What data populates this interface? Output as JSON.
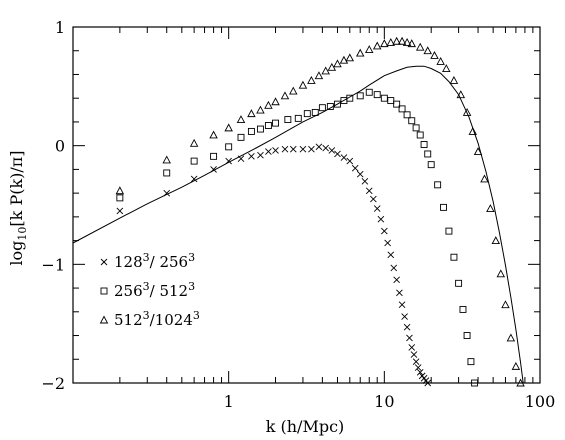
{
  "chart_data": {
    "type": "scatter",
    "title": "",
    "xlabel": "k (h/Mpc)",
    "ylabel_html": "log<sub>10</sub>[k P(k)/π]",
    "ylabel": {
      "pre": "log",
      "sub": "10",
      "post": "[k P(k)/π]"
    },
    "x_scale": "log",
    "xlim": [
      0.1,
      100
    ],
    "ylim": [
      -2,
      1
    ],
    "x_ticks": [
      {
        "value": 1,
        "label": "1"
      },
      {
        "value": 10,
        "label": "10"
      },
      {
        "value": 100,
        "label": "100"
      }
    ],
    "y_ticks": [
      {
        "value": -2,
        "label": "−2"
      },
      {
        "value": -1,
        "label": "−1"
      },
      {
        "value": 0,
        "label": "0"
      },
      {
        "value": 1,
        "label": "1"
      }
    ],
    "grid": false,
    "legend_position": "lower-left",
    "series": [
      {
        "name": "128³/ 256³",
        "label_parts": [
          "128",
          "3",
          "/ 256",
          "3"
        ],
        "marker": "x",
        "x": [
          0.2,
          0.4,
          0.6,
          0.8,
          1.0,
          1.2,
          1.4,
          1.6,
          1.8,
          2.0,
          2.3,
          2.6,
          3.0,
          3.4,
          3.8,
          4.2,
          4.6,
          5.0,
          5.5,
          6.0,
          6.5,
          7.0,
          7.5,
          8.0,
          8.5,
          9.0,
          9.5,
          10.0,
          10.5,
          11.0,
          11.5,
          12.0,
          12.5,
          13.0,
          13.5,
          14.0,
          14.5,
          15.0,
          15.5,
          16.0,
          16.5,
          17.0,
          17.5,
          18.0,
          18.5,
          19.0
        ],
        "y": [
          -0.55,
          -0.4,
          -0.28,
          -0.2,
          -0.13,
          -0.11,
          -0.09,
          -0.08,
          -0.05,
          -0.04,
          -0.03,
          -0.03,
          -0.03,
          -0.03,
          -0.01,
          -0.02,
          -0.04,
          -0.07,
          -0.1,
          -0.13,
          -0.19,
          -0.24,
          -0.3,
          -0.38,
          -0.45,
          -0.53,
          -0.62,
          -0.72,
          -0.82,
          -0.92,
          -1.03,
          -1.13,
          -1.24,
          -1.34,
          -1.44,
          -1.53,
          -1.62,
          -1.7,
          -1.76,
          -1.82,
          -1.87,
          -1.91,
          -1.94,
          -1.96,
          -1.98,
          -2.0
        ]
      },
      {
        "name": "256³/ 512³",
        "label_parts": [
          "256",
          "3",
          "/ 512",
          "3"
        ],
        "marker": "square",
        "x": [
          0.2,
          0.4,
          0.6,
          0.8,
          1.0,
          1.2,
          1.4,
          1.6,
          1.8,
          2.0,
          2.4,
          2.8,
          3.2,
          3.6,
          4.0,
          4.5,
          5.0,
          5.5,
          6.0,
          7.0,
          8.0,
          9.0,
          10.0,
          11.0,
          12.0,
          13.0,
          14.0,
          15.0,
          16.0,
          17.0,
          18.0,
          19.0,
          20.0,
          22.0,
          24.0,
          26.0,
          28.0,
          30.0,
          32.0,
          34.0,
          36.0,
          38.0
        ],
        "y": [
          -0.44,
          -0.23,
          -0.13,
          -0.09,
          -0.01,
          0.07,
          0.12,
          0.14,
          0.17,
          0.19,
          0.22,
          0.23,
          0.27,
          0.28,
          0.32,
          0.33,
          0.35,
          0.38,
          0.4,
          0.42,
          0.45,
          0.43,
          0.4,
          0.38,
          0.35,
          0.31,
          0.26,
          0.21,
          0.15,
          0.09,
          0.01,
          -0.07,
          -0.16,
          -0.33,
          -0.52,
          -0.72,
          -0.94,
          -1.16,
          -1.38,
          -1.6,
          -1.82,
          -2.0
        ]
      },
      {
        "name": "512³/1024³",
        "label_parts": [
          "512",
          "3",
          "/1024",
          "3"
        ],
        "marker": "triangle",
        "x": [
          0.2,
          0.4,
          0.6,
          0.8,
          1.0,
          1.2,
          1.4,
          1.6,
          1.8,
          2.0,
          2.3,
          2.6,
          3.0,
          3.4,
          3.8,
          4.2,
          4.6,
          5.0,
          5.5,
          6.0,
          7.0,
          8.0,
          9.0,
          10.0,
          11.0,
          12.0,
          13.0,
          14.0,
          15.0,
          17.0,
          19.0,
          21.0,
          23.0,
          25.0,
          28.0,
          31.0,
          34.0,
          37.0,
          40.0,
          44.0,
          48.0,
          52.0,
          56.0,
          60.0,
          65.0,
          70.0,
          75.0
        ],
        "y": [
          -0.38,
          -0.12,
          0.02,
          0.09,
          0.15,
          0.22,
          0.27,
          0.3,
          0.34,
          0.37,
          0.42,
          0.46,
          0.51,
          0.55,
          0.59,
          0.63,
          0.66,
          0.69,
          0.72,
          0.74,
          0.78,
          0.81,
          0.84,
          0.86,
          0.87,
          0.88,
          0.88,
          0.87,
          0.86,
          0.83,
          0.8,
          0.76,
          0.71,
          0.65,
          0.55,
          0.43,
          0.28,
          0.12,
          -0.05,
          -0.28,
          -0.53,
          -0.8,
          -1.08,
          -1.34,
          -1.62,
          -1.86,
          -2.0
        ]
      },
      {
        "name": "",
        "marker": "line",
        "x": [
          0.1,
          0.2,
          0.3,
          0.5,
          0.7,
          1.0,
          1.5,
          2.0,
          3.0,
          4.0,
          5.0,
          6.0,
          7.0,
          8.0,
          10.0,
          12.0,
          14.0,
          16.0,
          18.0,
          20.0,
          23.0,
          26.0,
          30.0,
          35.0,
          40.0,
          45.0,
          50.0,
          55.0,
          60.0,
          65.0,
          70.0,
          75.0,
          78.0
        ],
        "y": [
          -0.82,
          -0.61,
          -0.49,
          -0.35,
          -0.25,
          -0.14,
          -0.02,
          0.07,
          0.2,
          0.28,
          0.35,
          0.41,
          0.46,
          0.51,
          0.59,
          0.63,
          0.66,
          0.67,
          0.67,
          0.65,
          0.61,
          0.54,
          0.43,
          0.24,
          0.02,
          -0.22,
          -0.47,
          -0.74,
          -1.01,
          -1.28,
          -1.55,
          -1.83,
          -2.0
        ]
      }
    ]
  }
}
